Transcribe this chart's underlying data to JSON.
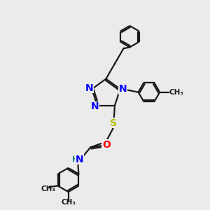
{
  "background_color": "#ebebeb",
  "bond_color": "#1a1a1a",
  "N_color": "#0000ff",
  "O_color": "#ff0000",
  "S_color": "#bbbb00",
  "H_color": "#008080",
  "font_size_atom": 10,
  "font_size_small": 7.5,
  "lw": 1.6,
  "xlim": [
    0,
    10
  ],
  "ylim": [
    0,
    10
  ]
}
